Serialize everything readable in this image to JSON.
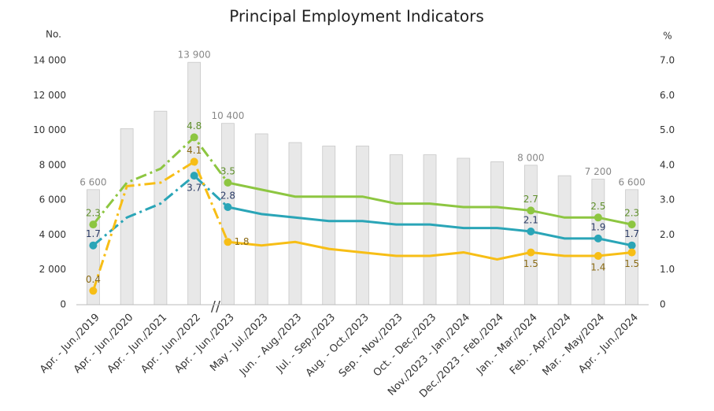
{
  "chart_data": {
    "type": "bar-line",
    "title": "Principal Employment Indicators",
    "ylabel": "No.",
    "y2label": "%",
    "categories": [
      "Apr. - Jun./2019",
      "Apr. - Jun./2020",
      "Apr. - Jun./2021",
      "Apr. - Jun./2022",
      "Apr. - Jun./2023",
      "May - Jul./2023",
      "Jun. - Aug./2023",
      "Jul. - Sep./2023",
      "Aug. - Oct./2023",
      "Sep. - Nov./2023",
      "Oct. - Dec./2023",
      "Nov./2023 - Jan./2024",
      "Dec./2023 - Feb./2024",
      "Jan. - Mar./2024",
      "Feb. - Apr./2024",
      "Mar. - May/2024",
      "Apr. - Jun./2024"
    ],
    "values": [
      6600,
      10100,
      11100,
      13900,
      10400,
      9800,
      9300,
      9100,
      9100,
      8600,
      8600,
      8400,
      8200,
      8000,
      7400,
      7200,
      6600
    ],
    "value_labels": [
      "6 600",
      null,
      null,
      "13 900",
      "10 400",
      null,
      null,
      null,
      null,
      null,
      null,
      null,
      null,
      "8 000",
      null,
      "7 200",
      "6 600"
    ],
    "color": "#e8e8e8",
    "series": [
      {
        "color": "#8dc641",
        "axis": "y2",
        "values": [
          2.3,
          3.5,
          3.9,
          4.8,
          3.5,
          3.3,
          3.1,
          3.1,
          3.1,
          2.9,
          2.9,
          2.8,
          2.8,
          2.7,
          2.5,
          2.5,
          2.3
        ],
        "value_labels": [
          "2.3",
          null,
          null,
          "4.8",
          "3.5",
          null,
          null,
          null,
          null,
          null,
          null,
          null,
          null,
          "2.7",
          null,
          "2.5",
          "2.3"
        ]
      },
      {
        "color": "#2aa5b7",
        "axis": "y2",
        "values": [
          1.7,
          2.5,
          2.9,
          3.7,
          2.8,
          2.6,
          2.5,
          2.4,
          2.4,
          2.3,
          2.3,
          2.2,
          2.2,
          2.1,
          1.9,
          1.9,
          1.7
        ],
        "value_labels": [
          "1.7",
          null,
          null,
          "3.7",
          "2.8",
          null,
          null,
          null,
          null,
          null,
          null,
          null,
          null,
          "2.1",
          null,
          "1.9",
          "1.7"
        ]
      },
      {
        "color": "#f7be16",
        "axis": "y2",
        "values": [
          0.4,
          3.4,
          3.5,
          4.1,
          1.8,
          1.7,
          1.8,
          1.6,
          1.5,
          1.4,
          1.4,
          1.5,
          1.3,
          1.5,
          1.4,
          1.4,
          1.5
        ],
        "value_labels": [
          "0.4",
          null,
          null,
          "4.1",
          "1.8",
          null,
          null,
          null,
          null,
          null,
          null,
          null,
          null,
          "1.5",
          null,
          "1.4",
          "1.5"
        ]
      }
    ],
    "ylim": [
      0,
      14000
    ],
    "yticks": [
      0,
      {
        "value": 2000,
        "label": "2 000"
      },
      {
        "value": 4000,
        "label": "4 000"
      },
      {
        "value": 6000,
        "label": "6 000"
      },
      {
        "value": 8000,
        "label": "8 000"
      },
      {
        "value": 10000,
        "label": "10 000"
      },
      {
        "value": 12000,
        "label": "12 000"
      },
      {
        "value": 14000,
        "label": "14 000"
      }
    ],
    "y2lim": [
      0,
      7
    ],
    "y2ticks": [
      0,
      {
        "value": 1,
        "label": "1.0"
      },
      {
        "value": 2,
        "label": "2.0"
      },
      {
        "value": 3,
        "label": "3.0"
      },
      {
        "value": 4,
        "label": "4.0"
      },
      {
        "value": 5,
        "label": "5.0"
      },
      {
        "value": 6,
        "label": "6.0"
      },
      {
        "value": 7,
        "label": "7.0"
      }
    ]
  }
}
